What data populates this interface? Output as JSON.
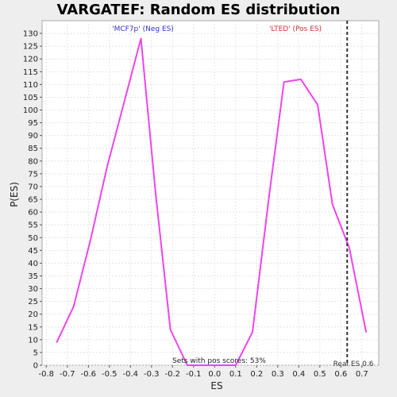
{
  "chart_data": {
    "type": "line",
    "title": "VARGATEF: Random ES distribution",
    "xlabel": "ES",
    "ylabel": "P(ES)",
    "xlim": [
      -0.82,
      0.78
    ],
    "ylim": [
      0,
      135
    ],
    "xticks": [
      -0.8,
      -0.7,
      -0.6,
      -0.5,
      -0.4,
      -0.3,
      -0.2,
      -0.1,
      0.0,
      0.1,
      0.2,
      0.3,
      0.4,
      0.5,
      0.6,
      0.7
    ],
    "yticks": [
      0,
      5,
      10,
      15,
      20,
      25,
      30,
      35,
      40,
      45,
      50,
      55,
      60,
      65,
      70,
      75,
      80,
      85,
      90,
      95,
      100,
      105,
      110,
      115,
      120,
      125,
      130
    ],
    "grid": true,
    "series": [
      {
        "x": [
          -0.75,
          -0.67,
          -0.59,
          -0.51,
          -0.43,
          -0.35,
          -0.28,
          -0.21,
          -0.13,
          -0.05,
          0.03,
          0.1,
          0.18,
          0.26,
          0.33,
          0.41,
          0.49,
          0.56,
          0.64,
          0.72
        ],
        "values": [
          9,
          23,
          49,
          78,
          103,
          128,
          67,
          14,
          0,
          0,
          0,
          0,
          13,
          67,
          111,
          112,
          102,
          63,
          46,
          13
        ],
        "color": "#ee44ee"
      }
    ],
    "reference_line": {
      "x": 0.63,
      "label": "Real ES 0.6",
      "color": "#333333"
    },
    "annotations": {
      "neg_label": "'MCF7p' (Neg ES)",
      "pos_label": "'LTED' (Pos ES)",
      "pos_scores": "Sets with pos scores: 53%"
    },
    "colors": {
      "neg": "#3333cc",
      "pos": "#cc3333",
      "background": "#eeeeee",
      "plot_bg": "#ffffff",
      "grid": "#e4e4e4"
    }
  }
}
